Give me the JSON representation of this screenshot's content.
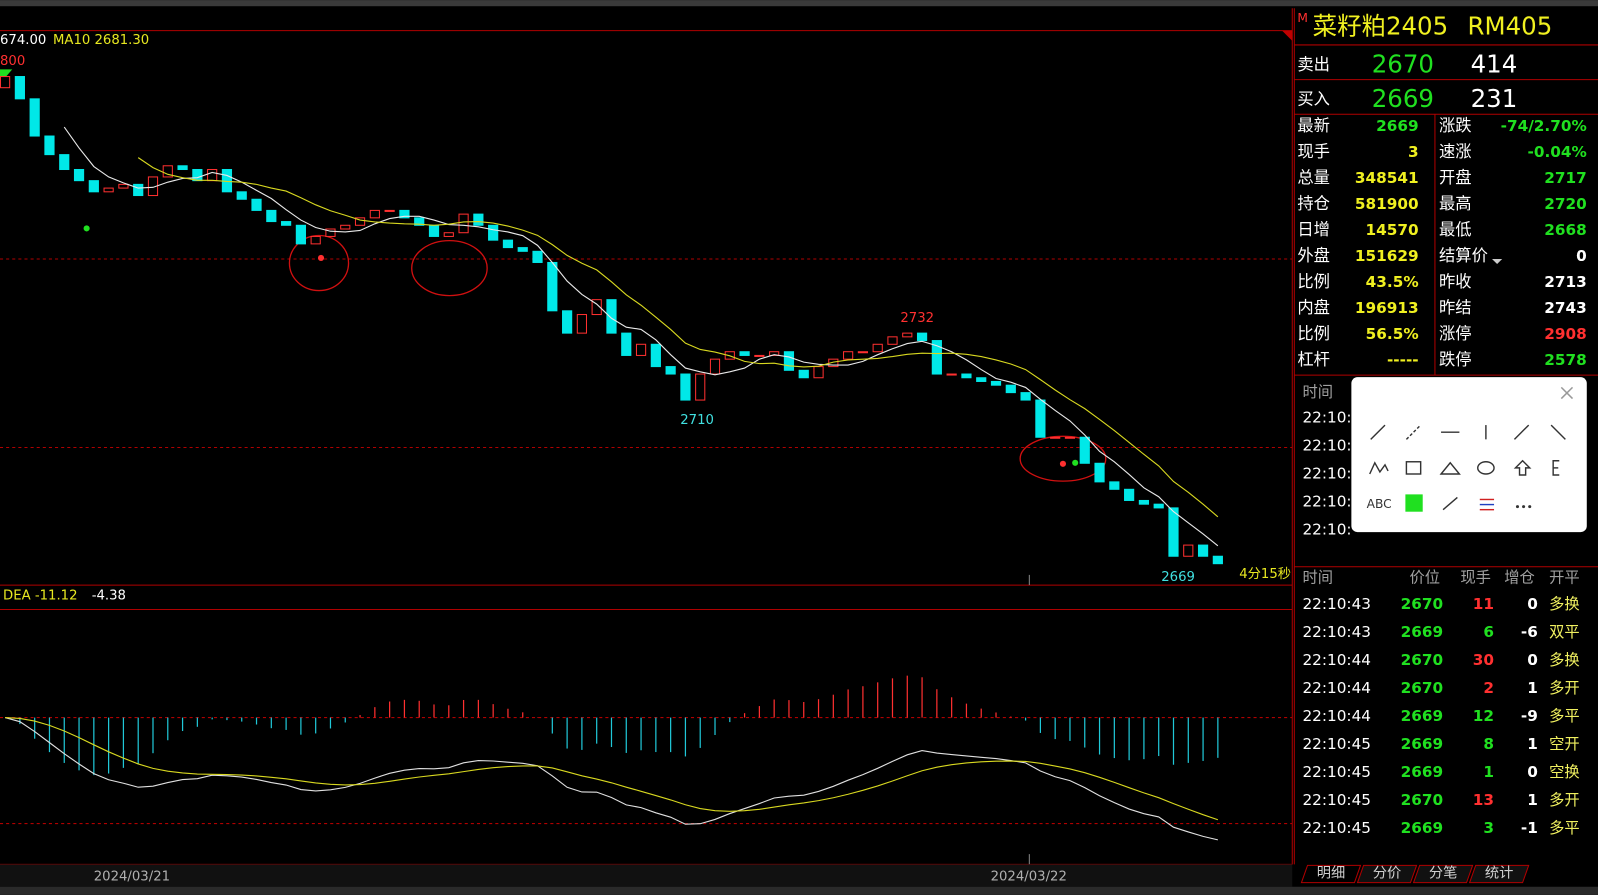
{
  "chart": {
    "indicator_value": "674.00",
    "ma10_label": "MA10 2681.30",
    "top_label": "800",
    "open": [
      2797,
      2800,
      2794,
      2784,
      2779,
      2775,
      2772,
      2769,
      2770,
      2771,
      2768,
      2773,
      2776,
      2775,
      2772,
      2775,
      2769,
      2767,
      2764,
      2761,
      2760,
      2755,
      2757,
      2759,
      2760,
      2762,
      2764,
      2764,
      2762,
      2760,
      2757,
      2758,
      2763,
      2760,
      2756,
      2754,
      2753,
      2750,
      2737,
      2731,
      2736,
      2740,
      2731,
      2725,
      2728,
      2722,
      2720,
      2713,
      2720,
      2724,
      2726,
      2725,
      2725,
      2726,
      2721,
      2719,
      2722,
      2724,
      2726,
      2726,
      2728,
      2730,
      2731,
      2729,
      2720,
      2720,
      2719,
      2718,
      2717,
      2715,
      2713,
      2703,
      2703,
      2703,
      2696,
      2691,
      2689,
      2686,
      2685,
      2684,
      2671,
      2674,
      2671
    ],
    "close": [
      2800,
      2794,
      2784,
      2779,
      2775,
      2772,
      2769,
      2770,
      2771,
      2768,
      2773,
      2776,
      2775,
      2772,
      2775,
      2769,
      2767,
      2764,
      2761,
      2760,
      2755,
      2757,
      2759,
      2760,
      2762,
      2764,
      2764,
      2762,
      2760,
      2757,
      2758,
      2763,
      2760,
      2756,
      2754,
      2753,
      2750,
      2737,
      2731,
      2736,
      2740,
      2731,
      2725,
      2728,
      2722,
      2720,
      2713,
      2720,
      2724,
      2726,
      2725,
      2725,
      2726,
      2721,
      2719,
      2722,
      2724,
      2726,
      2726,
      2728,
      2730,
      2731,
      2729,
      2720,
      2720,
      2719,
      2718,
      2717,
      2715,
      2713,
      2703,
      2703,
      2703,
      2696,
      2691,
      2689,
      2686,
      2685,
      2684,
      2671,
      2674,
      2671,
      2669
    ],
    "annotations": [
      2732,
      2710,
      2669
    ],
    "countdown": "4分15秒",
    "macd_label": "DEA -11.12",
    "macd_value": -4.38,
    "dates": [
      "2024/03/21",
      "2024/03/22"
    ]
  },
  "quote": {
    "market": "M",
    "symbol": "菜籽粕2405",
    "code": "RM405",
    "ask": {
      "label": "卖出",
      "price": 2670,
      "volume": 414
    },
    "bid": {
      "label": "买入",
      "price": 2669,
      "volume": 231
    },
    "left": [
      {
        "label": "最新",
        "value": 2669,
        "color": "#20e020"
      },
      {
        "label": "现手",
        "value": 3,
        "color": "#f0f020"
      },
      {
        "label": "总量",
        "value": 348541,
        "color": "#f0f020"
      },
      {
        "label": "持仓",
        "value": 581900,
        "color": "#f0f020"
      },
      {
        "label": "日增",
        "value": 14570,
        "color": "#f0f020"
      },
      {
        "label": "外盘",
        "value": 151629,
        "color": "#f0f020"
      },
      {
        "label": "比例",
        "value": "43.5%",
        "color": "#f0f020"
      },
      {
        "label": "内盘",
        "value": 196913,
        "color": "#f0f020"
      },
      {
        "label": "比例",
        "value": "56.5%",
        "color": "#f0f020"
      },
      {
        "label": "杠杆",
        "value": "-----",
        "color": "#f0f020"
      }
    ],
    "right": [
      {
        "label": "涨跌",
        "value": "-74/2.70%",
        "color": "#20e020"
      },
      {
        "label": "速涨",
        "value": "-0.04%",
        "color": "#20e020"
      },
      {
        "label": "开盘",
        "value": 2717,
        "color": "#20e020"
      },
      {
        "label": "最高",
        "value": 2720,
        "color": "#20e020"
      },
      {
        "label": "最低",
        "value": 2668,
        "color": "#20e020"
      },
      {
        "label": "结算价",
        "value": 0,
        "color": "#ffffff"
      },
      {
        "label": "昨收",
        "value": 2713,
        "color": "#ffffff"
      },
      {
        "label": "昨结",
        "value": 2743,
        "color": "#ffffff"
      },
      {
        "label": "涨停",
        "value": 2908,
        "color": "#ff3030"
      },
      {
        "label": "跌停",
        "value": 2578,
        "color": "#20e020"
      }
    ]
  },
  "ticks": {
    "header": "时间",
    "times": [
      "22:10:",
      "22:10:",
      "22:10:",
      "22:10:",
      "22:10:"
    ]
  },
  "toolbar": {
    "text_tool": "ABC"
  },
  "trades": {
    "header": [
      "时间",
      "价位",
      "现手",
      "增仓",
      "开平"
    ],
    "rows": [
      [
        "22:10:43",
        2670,
        11,
        0,
        "多换"
      ],
      [
        "22:10:43",
        2669,
        6,
        -6,
        "双平"
      ],
      [
        "22:10:44",
        2670,
        30,
        0,
        "多换"
      ],
      [
        "22:10:44",
        2670,
        2,
        1,
        "多开"
      ],
      [
        "22:10:44",
        2669,
        12,
        -9,
        "多平"
      ],
      [
        "22:10:45",
        2669,
        8,
        1,
        "空开"
      ],
      [
        "22:10:45",
        2669,
        1,
        0,
        "空换"
      ],
      [
        "22:10:45",
        2670,
        13,
        1,
        "多开"
      ],
      [
        "22:10:45",
        2669,
        3,
        -1,
        "多平"
      ]
    ]
  },
  "tabs": [
    "明细",
    "分价",
    "分笔",
    "统计"
  ]
}
